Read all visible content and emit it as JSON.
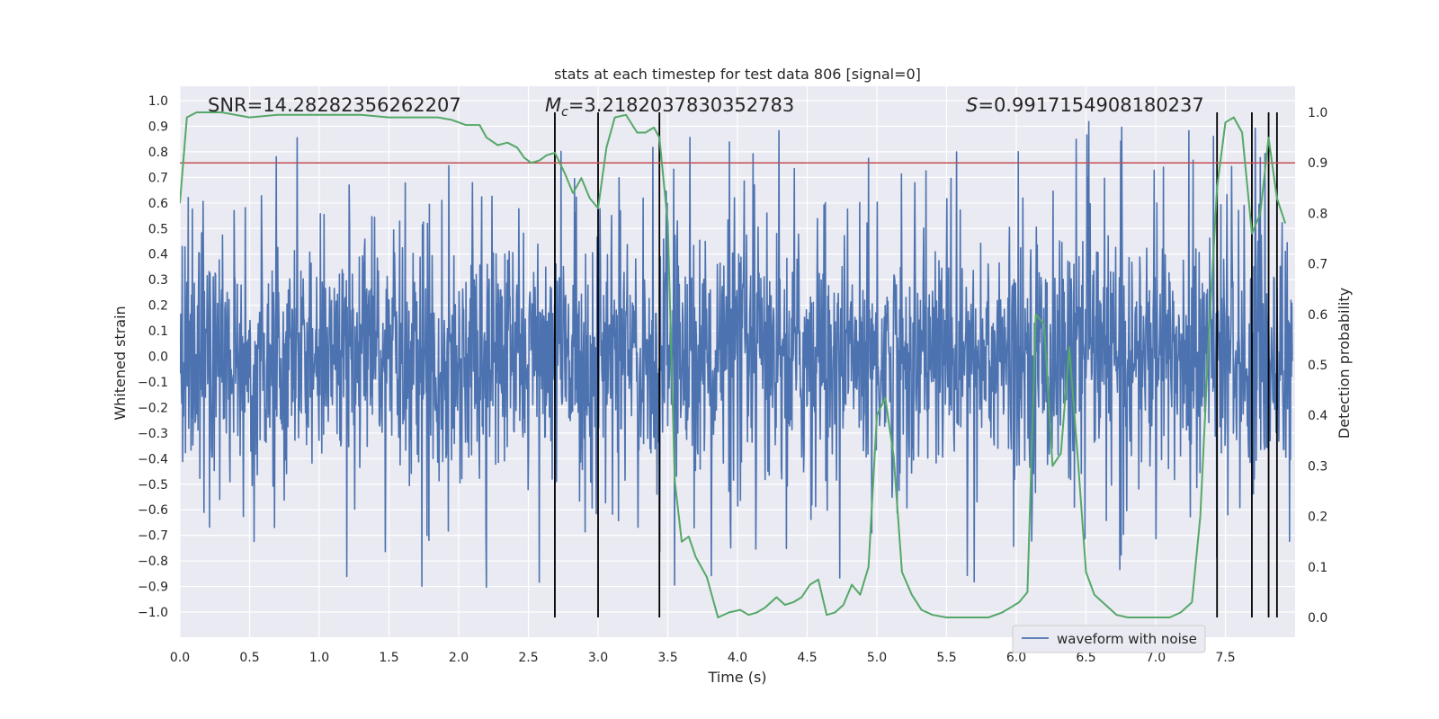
{
  "chart_data": {
    "type": "line",
    "title": "stats at each timestep for test data 806 [signal=0]",
    "xlabel": "Time (s)",
    "ylabel": "Whitened strain",
    "y2label": "Detection probability",
    "xlim": [
      0.0,
      8.0
    ],
    "ylim": [
      -1.1,
      1.1
    ],
    "y2lim": [
      -0.05,
      1.05
    ],
    "xticks": [
      "0.0",
      "0.5",
      "1.0",
      "1.5",
      "2.0",
      "2.5",
      "3.0",
      "3.5",
      "4.0",
      "4.5",
      "5.0",
      "5.5",
      "6.0",
      "6.5",
      "7.0",
      "7.5"
    ],
    "yticks": [
      "1.0",
      "0.9",
      "0.8",
      "0.7",
      "0.6",
      "0.5",
      "0.4",
      "0.3",
      "0.2",
      "0.1",
      "0.0",
      "−0.1",
      "−0.2",
      "−0.3",
      "−0.4",
      "−0.5",
      "−0.6",
      "−0.7",
      "−0.8",
      "−0.9",
      "−1.0"
    ],
    "y2ticks": [
      "1.0",
      "0.9",
      "0.8",
      "0.7",
      "0.6",
      "0.5",
      "0.4",
      "0.3",
      "0.2",
      "0.1",
      "0.0"
    ],
    "annotations": {
      "snr": "SNR=14.28282356262207",
      "mc_symbol": "M",
      "mc_sub": "c",
      "mc_value": "=3.2182037830352783",
      "s_symbol": "S",
      "s_value": "=0.9917154908180237"
    },
    "threshold": {
      "name": "threshold",
      "value": 0.9,
      "axis": "right",
      "color": "#c44e52"
    },
    "detections_x": [
      2.69,
      3.0,
      3.44,
      7.44,
      7.69,
      7.81,
      7.87
    ],
    "legend": {
      "label": "waveform with noise",
      "position": "lower-right"
    },
    "series": [
      {
        "name": "waveform with noise",
        "axis": "left",
        "color": "#4c72b0",
        "generated": "noise",
        "amplitude_range": [
          -1.0,
          0.97
        ]
      },
      {
        "name": "detection probability",
        "axis": "right",
        "color": "#55a868",
        "x": [
          0.0,
          0.05,
          0.12,
          0.2,
          0.3,
          0.5,
          0.7,
          1.0,
          1.3,
          1.5,
          1.7,
          1.85,
          1.95,
          2.05,
          2.15,
          2.2,
          2.28,
          2.35,
          2.42,
          2.47,
          2.52,
          2.58,
          2.63,
          2.69,
          2.76,
          2.82,
          2.88,
          2.94,
          3.0,
          3.06,
          3.12,
          3.2,
          3.28,
          3.34,
          3.4,
          3.44,
          3.5,
          3.55,
          3.6,
          3.65,
          3.7,
          3.78,
          3.86,
          3.94,
          4.02,
          4.08,
          4.14,
          4.2,
          4.28,
          4.34,
          4.4,
          4.46,
          4.52,
          4.58,
          4.64,
          4.7,
          4.76,
          4.82,
          4.88,
          4.94,
          5.0,
          5.06,
          5.12,
          5.18,
          5.25,
          5.32,
          5.4,
          5.5,
          5.6,
          5.7,
          5.8,
          5.9,
          5.96,
          6.02,
          6.08,
          6.14,
          6.2,
          6.26,
          6.32,
          6.38,
          6.44,
          6.5,
          6.56,
          6.64,
          6.72,
          6.8,
          6.9,
          7.0,
          7.1,
          7.18,
          7.26,
          7.32,
          7.38,
          7.44,
          7.5,
          7.56,
          7.62,
          7.69,
          7.75,
          7.81,
          7.87,
          7.93
        ],
        "y": [
          0.82,
          0.99,
          1.0,
          1.0,
          1.0,
          0.99,
          0.995,
          0.995,
          0.995,
          0.99,
          0.99,
          0.99,
          0.985,
          0.975,
          0.975,
          0.95,
          0.935,
          0.94,
          0.93,
          0.91,
          0.9,
          0.905,
          0.915,
          0.92,
          0.88,
          0.84,
          0.87,
          0.83,
          0.81,
          0.93,
          0.99,
          0.995,
          0.96,
          0.96,
          0.97,
          0.95,
          0.78,
          0.27,
          0.15,
          0.16,
          0.12,
          0.08,
          0.0,
          0.01,
          0.015,
          0.005,
          0.01,
          0.02,
          0.04,
          0.025,
          0.03,
          0.04,
          0.065,
          0.075,
          0.005,
          0.01,
          0.025,
          0.065,
          0.045,
          0.1,
          0.4,
          0.435,
          0.32,
          0.09,
          0.045,
          0.015,
          0.005,
          0.0,
          0.0,
          0.0,
          0.0,
          0.01,
          0.02,
          0.03,
          0.05,
          0.6,
          0.58,
          0.3,
          0.325,
          0.535,
          0.32,
          0.09,
          0.045,
          0.025,
          0.005,
          0.0,
          0.0,
          0.0,
          0.0,
          0.01,
          0.03,
          0.2,
          0.55,
          0.85,
          0.98,
          0.99,
          0.96,
          0.76,
          0.8,
          0.95,
          0.83,
          0.78
        ]
      }
    ]
  }
}
